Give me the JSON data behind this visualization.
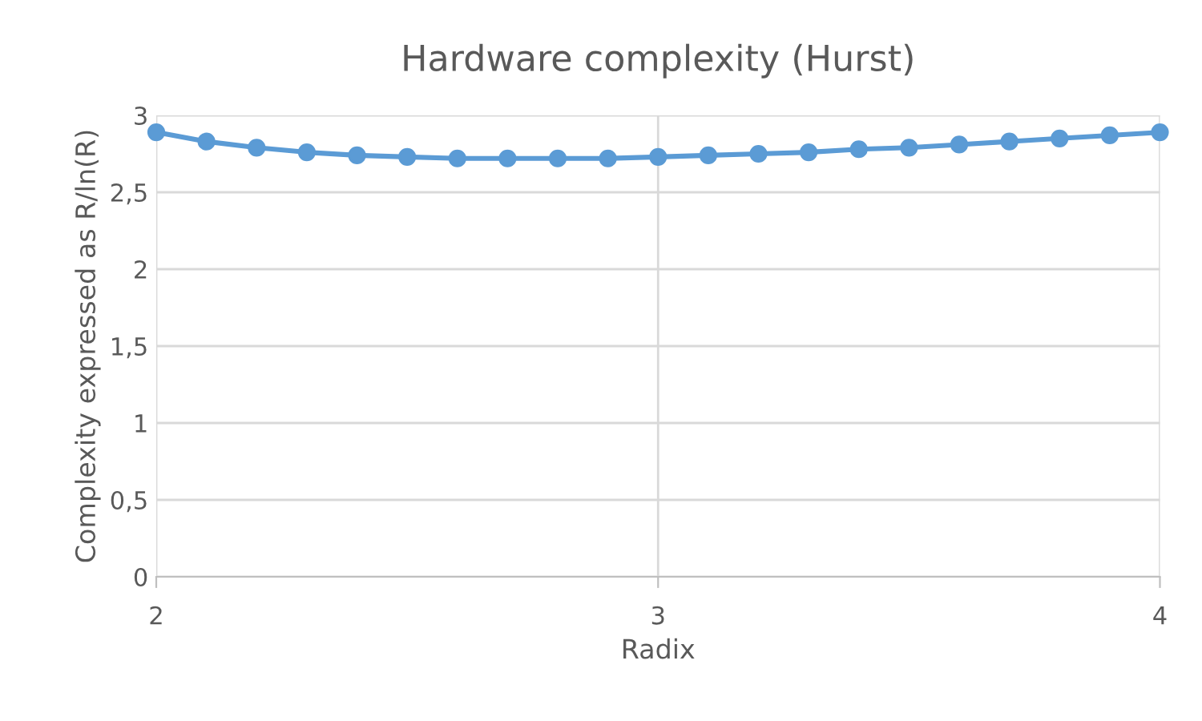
{
  "chart_data": {
    "type": "line",
    "title": "Hardware complexity (Hurst)",
    "xlabel": "Radix",
    "ylabel": "Complexity expressed as R/ln(R)",
    "x": [
      2.0,
      2.1,
      2.2,
      2.3,
      2.4,
      2.5,
      2.6,
      2.7,
      2.8,
      2.9,
      3.0,
      3.1,
      3.2,
      3.3,
      3.4,
      3.5,
      3.6,
      3.7,
      3.8,
      3.9,
      4.0
    ],
    "series": [
      {
        "color": "#5b9bd5",
        "values": [
          2.89,
          2.83,
          2.79,
          2.76,
          2.74,
          2.73,
          2.72,
          2.72,
          2.72,
          2.72,
          2.73,
          2.74,
          2.75,
          2.76,
          2.78,
          2.79,
          2.81,
          2.83,
          2.85,
          2.87,
          2.89
        ]
      }
    ],
    "xlim": [
      2,
      4
    ],
    "xticks": [
      2,
      3,
      4
    ],
    "ylim": [
      0,
      3
    ],
    "yticks": [
      0,
      {
        "value": 0.5,
        "label": "0,5"
      },
      1,
      {
        "value": 1.5,
        "label": "1,5"
      },
      2,
      {
        "value": 2.5,
        "label": "2,5"
      },
      3
    ],
    "grid": true,
    "marker": "circle",
    "line_style": "solid"
  }
}
